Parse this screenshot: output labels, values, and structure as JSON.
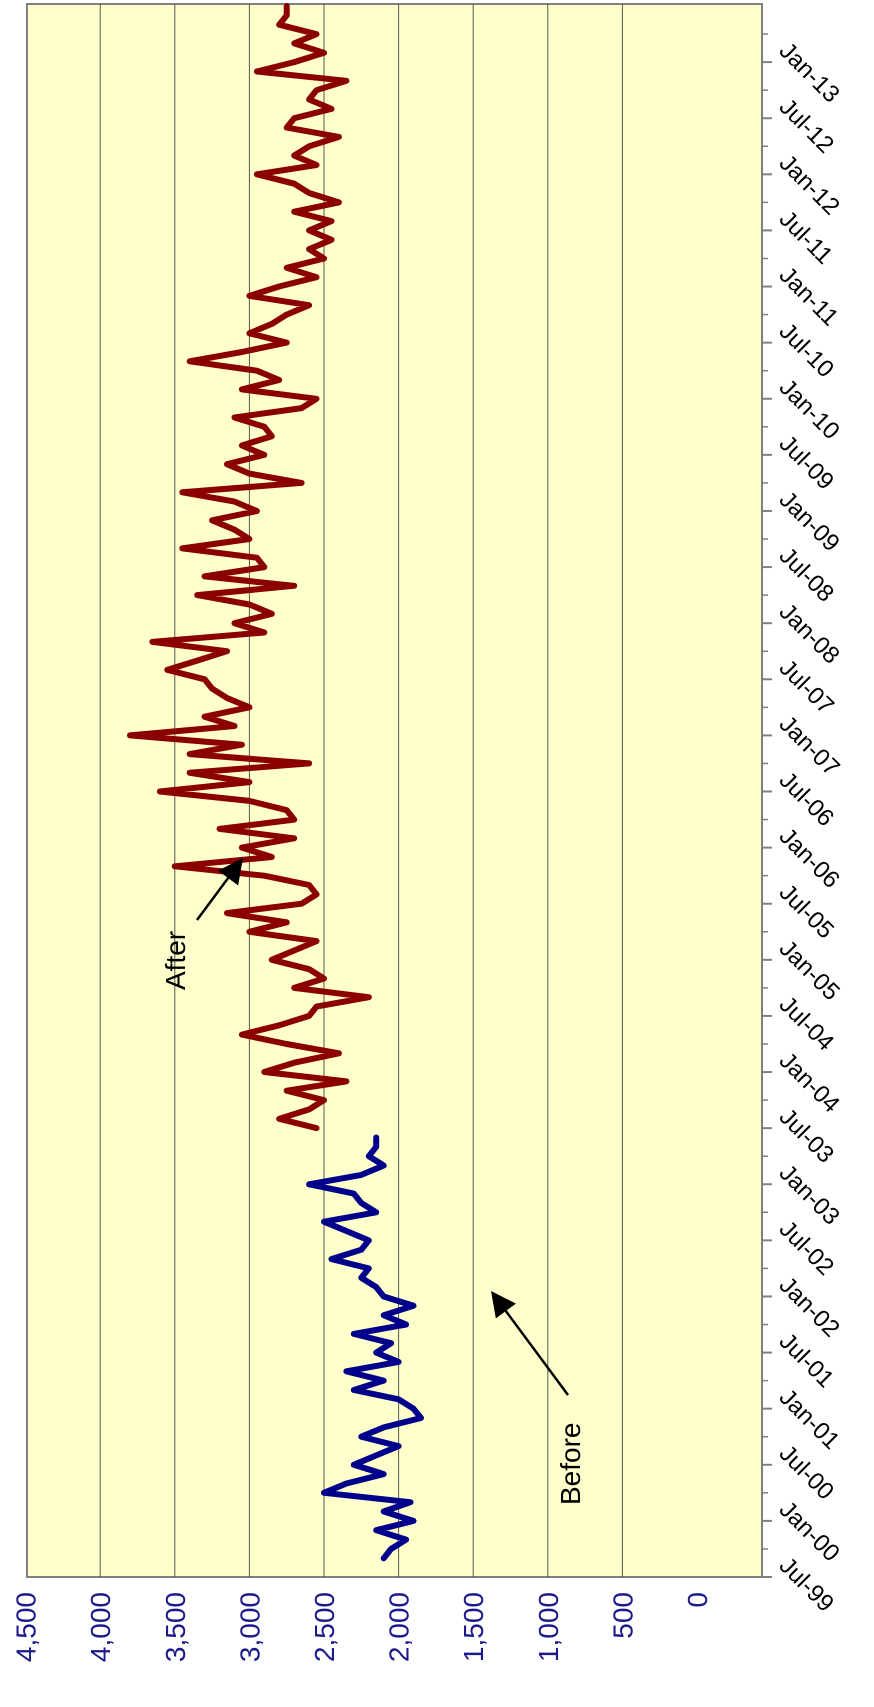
{
  "chart_data": {
    "type": "line",
    "orientation": "rotated 90 degrees clockwise (value axis along the bottom, time axis along the right)",
    "title": "",
    "xlabel": "",
    "ylabel": "",
    "ylim": [
      0,
      4500
    ],
    "y_ticks": [
      "0",
      "500",
      "1,000",
      "1,500",
      "2,000",
      "2,500",
      "3,000",
      "3,500",
      "4,000",
      "4,500"
    ],
    "x_ticks": [
      "Jul-99",
      "Jan-00",
      "Jul-00",
      "Jan-01",
      "Jul-01",
      "Jan-02",
      "Jul-02",
      "Jan-03",
      "Jul-03",
      "Jan-04",
      "Jul-04",
      "Jan-05",
      "Jul-05",
      "Jan-06",
      "Jul-06",
      "Jan-07",
      "Jul-07",
      "Jan-08",
      "Jul-08",
      "Jan-09",
      "Jul-09",
      "Jan-10",
      "Jul-10",
      "Jan-11",
      "Jul-11",
      "Jan-12",
      "Jul-12",
      "Jan-13"
    ],
    "xlim": [
      "1999-07",
      "2013-07"
    ],
    "grid": "horizontal value gridlines every 500",
    "plot_background": "#ffffcc",
    "series": [
      {
        "color": "#00008b",
        "x": [
          "1999-09",
          "1999-10",
          "1999-11",
          "1999-12",
          "2000-01",
          "2000-02",
          "2000-03",
          "2000-04",
          "2000-05",
          "2000-06",
          "2000-07",
          "2000-08",
          "2000-09",
          "2000-10",
          "2000-11",
          "2000-12",
          "2001-01",
          "2001-02",
          "2001-03",
          "2001-04",
          "2001-05",
          "2001-06",
          "2001-07",
          "2001-08",
          "2001-09",
          "2001-10",
          "2001-11",
          "2001-12",
          "2002-01",
          "2002-02",
          "2002-03",
          "2002-04",
          "2002-05",
          "2002-06",
          "2002-07",
          "2002-08",
          "2002-09",
          "2002-10",
          "2002-11",
          "2002-12",
          "2003-01",
          "2003-02",
          "2003-03",
          "2003-04",
          "2003-05",
          "2003-06"
        ],
        "values": [
          2100,
          2050,
          1950,
          2150,
          1900,
          2100,
          1920,
          2500,
          2350,
          2100,
          2300,
          2150,
          2000,
          2250,
          2100,
          1850,
          1900,
          2000,
          2300,
          2100,
          2350,
          2000,
          2150,
          2050,
          2300,
          1950,
          2100,
          1900,
          2100,
          2150,
          2250,
          2200,
          2450,
          2250,
          2200,
          2350,
          2500,
          2150,
          2250,
          2300,
          2600,
          2250,
          2100,
          2200,
          2150,
          2150
        ]
      },
      {
        "color": "#8b0000",
        "x": [
          "2003-07",
          "2003-08",
          "2003-09",
          "2003-10",
          "2003-11",
          "2003-12",
          "2004-01",
          "2004-02",
          "2004-03",
          "2004-04",
          "2004-05",
          "2004-06",
          "2004-07",
          "2004-08",
          "2004-09",
          "2004-10",
          "2004-11",
          "2004-12",
          "2005-01",
          "2005-02",
          "2005-03",
          "2005-04",
          "2005-05",
          "2005-06",
          "2005-07",
          "2005-08",
          "2005-09",
          "2005-10",
          "2005-11",
          "2005-12",
          "2006-01",
          "2006-02",
          "2006-03",
          "2006-04",
          "2006-05",
          "2006-06",
          "2006-07",
          "2006-08",
          "2006-09",
          "2006-10",
          "2006-11",
          "2006-12",
          "2007-01",
          "2007-02",
          "2007-03",
          "2007-04",
          "2007-05",
          "2007-06",
          "2007-07",
          "2007-08",
          "2007-09",
          "2007-10",
          "2007-11",
          "2007-12",
          "2008-01",
          "2008-02",
          "2008-03",
          "2008-04",
          "2008-05",
          "2008-06",
          "2008-07",
          "2008-08",
          "2008-09",
          "2008-10",
          "2008-11",
          "2008-12",
          "2009-01",
          "2009-02",
          "2009-03",
          "2009-04",
          "2009-05",
          "2009-06",
          "2009-07",
          "2009-08",
          "2009-09",
          "2009-10",
          "2009-11",
          "2009-12",
          "2010-01",
          "2010-02",
          "2010-03",
          "2010-04",
          "2010-05",
          "2010-06",
          "2010-07",
          "2010-08",
          "2010-09",
          "2010-10",
          "2010-11",
          "2010-12",
          "2011-01",
          "2011-02",
          "2011-03",
          "2011-04",
          "2011-05",
          "2011-06",
          "2011-07",
          "2011-08",
          "2011-09",
          "2011-10",
          "2011-11",
          "2011-12",
          "2012-01",
          "2012-02",
          "2012-03",
          "2012-04",
          "2012-05",
          "2012-06",
          "2012-07",
          "2012-08",
          "2012-09",
          "2012-10",
          "2012-11",
          "2012-12",
          "2013-01",
          "2013-02",
          "2013-03",
          "2013-04",
          "2013-05",
          "2013-06",
          "2013-07"
        ],
        "values": [
          2550,
          2800,
          2600,
          2500,
          2750,
          2350,
          2900,
          2700,
          2400,
          2750,
          3050,
          2800,
          2600,
          2550,
          2200,
          2700,
          2500,
          2600,
          2850,
          2700,
          2550,
          3000,
          2750,
          3150,
          2650,
          2550,
          2600,
          2900,
          3500,
          2850,
          3050,
          2700,
          3200,
          2700,
          2750,
          3000,
          3600,
          3000,
          3400,
          2600,
          3400,
          3050,
          3800,
          3100,
          3300,
          3000,
          3150,
          3250,
          3300,
          3550,
          3350,
          3150,
          3650,
          2900,
          3100,
          2850,
          3000,
          3350,
          2700,
          3300,
          2900,
          2950,
          3450,
          3000,
          3100,
          3250,
          2950,
          3100,
          3450,
          2650,
          3000,
          3150,
          2900,
          3050,
          2850,
          2900,
          3100,
          2650,
          2550,
          3050,
          2800,
          2950,
          3400,
          3050,
          2750,
          3000,
          2850,
          2750,
          2600,
          3000,
          2800,
          2550,
          2750,
          2500,
          2600,
          2450,
          2600,
          2450,
          2700,
          2400,
          2600,
          2700,
          2950,
          2550,
          2700,
          2600,
          2400,
          2750,
          2700,
          2450,
          2600,
          2550,
          2350,
          2950,
          2700,
          2500,
          2700,
          2550,
          2800,
          2750,
          2750
        ]
      }
    ],
    "annotations": [
      {
        "text": "After",
        "points_to": "Jan-06",
        "value": 3300
      },
      {
        "text": "Before",
        "points_to": "Jul-02",
        "value": 1700
      }
    ]
  }
}
